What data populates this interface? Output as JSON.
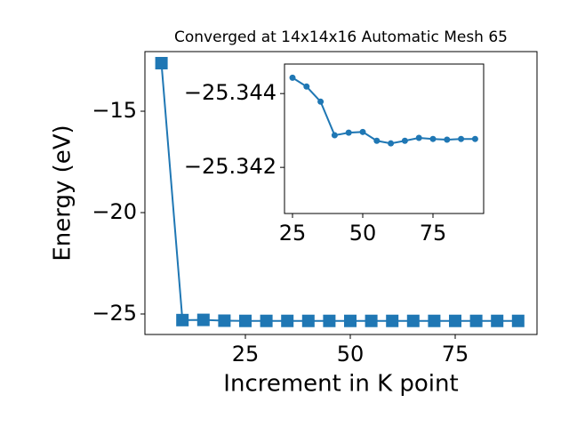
{
  "chart_data": [
    {
      "type": "line",
      "title": "Converged at 14x14x16 Automatic Mesh 65",
      "x_label": "Increment in K point",
      "y_label": "Energy (eV)",
      "x": [
        5,
        10,
        15,
        20,
        25,
        30,
        35,
        40,
        45,
        50,
        55,
        60,
        65,
        70,
        75,
        80,
        85,
        90
      ],
      "series": [
        {
          "color": "#1f77b4",
          "marker": "square",
          "values": [
            -12.63,
            -25.3,
            -25.29,
            -25.33,
            -25.34,
            -25.34,
            -25.34,
            -25.34,
            -25.34,
            -25.34,
            -25.34,
            -25.34,
            -25.34,
            -25.34,
            -25.34,
            -25.34,
            -25.34,
            -25.34
          ]
        }
      ],
      "xlim": [
        1.06,
        94.49
      ],
      "ylim": [
        -26.01,
        -12.06
      ],
      "xticks": [
        25,
        50,
        75
      ],
      "yticks": [
        {
          "value": -25,
          "label": "−25"
        },
        {
          "value": -20,
          "label": "−20"
        },
        {
          "value": -15,
          "label": "−15"
        }
      ]
    },
    {
      "type": "line",
      "x": [
        25,
        30,
        35,
        40,
        45,
        50,
        55,
        60,
        65,
        70,
        75,
        80,
        85,
        90
      ],
      "series": [
        {
          "color": "#1f77b4",
          "marker": "circle",
          "values": [
            -25.34443,
            -25.34419,
            -25.34378,
            -25.34287,
            -25.34294,
            -25.34296,
            -25.34272,
            -25.34265,
            -25.34272,
            -25.3428,
            -25.34277,
            -25.34275,
            -25.34277,
            -25.34277
          ]
        }
      ],
      "xlim": [
        22.15,
        93.04
      ],
      "ylim": [
        -25.34075,
        -25.3448
      ],
      "xticks": [
        25,
        50,
        75
      ],
      "yticks": [
        {
          "value": -25.342,
          "label": "−25.342"
        },
        {
          "value": -25.344,
          "label": "−25.344"
        }
      ]
    }
  ]
}
